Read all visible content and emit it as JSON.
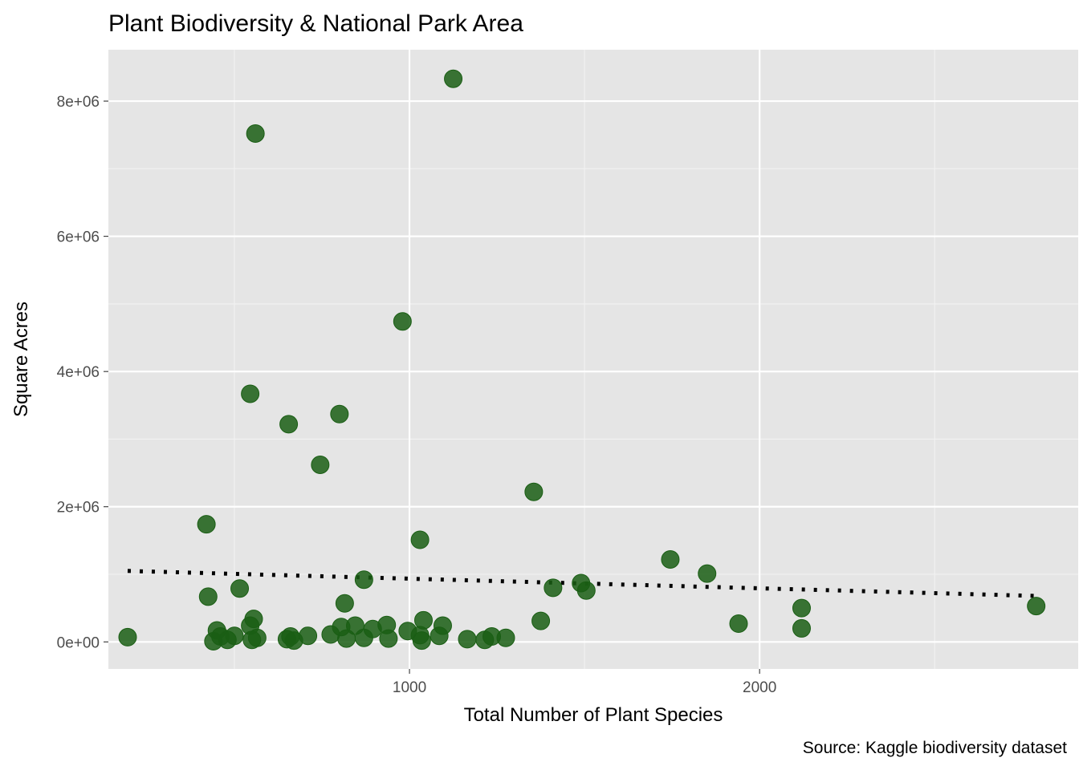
{
  "chart_data": {
    "type": "scatter",
    "title": "Plant Biodiversity & National Park Area",
    "xlabel": "Total Number of Plant Species",
    "ylabel": "Square Acres",
    "caption": "Source: Kaggle biodiversity dataset",
    "xlim": [
      140,
      2910
    ],
    "ylim": [
      -400000,
      8760000
    ],
    "x_ticks": [
      1000,
      2000
    ],
    "x_tick_labels": [
      "1000",
      "2000"
    ],
    "x_minor_ticks": [
      500,
      1500,
      2500
    ],
    "y_ticks": [
      0,
      2000000,
      4000000,
      6000000,
      8000000
    ],
    "y_tick_labels": [
      "0e+00",
      "2e+06",
      "4e+06",
      "6e+06",
      "8e+06"
    ],
    "y_minor_ticks": [
      1000000,
      3000000,
      5000000,
      7000000
    ],
    "grid": true,
    "background": "#e5e5e5",
    "point_color": "#1a5e14",
    "trend_color": "#000000",
    "trend_line": {
      "style": "dotted",
      "x": [
        195,
        2790
      ],
      "y": [
        1050000,
        680000
      ]
    },
    "series": [
      {
        "points": [
          [
            1125,
            8330000
          ],
          [
            560,
            7520000
          ],
          [
            980,
            4740000
          ],
          [
            545,
            3670000
          ],
          [
            655,
            3220000
          ],
          [
            800,
            3370000
          ],
          [
            745,
            2620000
          ],
          [
            1355,
            2220000
          ],
          [
            420,
            1740000
          ],
          [
            1030,
            1510000
          ],
          [
            1745,
            1220000
          ],
          [
            1850,
            1010000
          ],
          [
            870,
            920000
          ],
          [
            1490,
            870000
          ],
          [
            1505,
            760000
          ],
          [
            1410,
            800000
          ],
          [
            515,
            790000
          ],
          [
            425,
            670000
          ],
          [
            815,
            570000
          ],
          [
            2120,
            500000
          ],
          [
            2790,
            530000
          ],
          [
            1940,
            270000
          ],
          [
            2120,
            200000
          ],
          [
            1375,
            310000
          ],
          [
            555,
            340000
          ],
          [
            545,
            240000
          ],
          [
            450,
            170000
          ],
          [
            460,
            80000
          ],
          [
            500,
            90000
          ],
          [
            565,
            60000
          ],
          [
            440,
            10000
          ],
          [
            480,
            30000
          ],
          [
            550,
            30000
          ],
          [
            660,
            80000
          ],
          [
            650,
            40000
          ],
          [
            670,
            20000
          ],
          [
            710,
            90000
          ],
          [
            775,
            110000
          ],
          [
            805,
            220000
          ],
          [
            820,
            50000
          ],
          [
            845,
            240000
          ],
          [
            870,
            60000
          ],
          [
            895,
            190000
          ],
          [
            935,
            250000
          ],
          [
            940,
            50000
          ],
          [
            995,
            160000
          ],
          [
            1030,
            100000
          ],
          [
            1035,
            20000
          ],
          [
            1040,
            320000
          ],
          [
            1085,
            90000
          ],
          [
            1095,
            240000
          ],
          [
            1165,
            40000
          ],
          [
            1215,
            30000
          ],
          [
            1235,
            80000
          ],
          [
            1275,
            60000
          ],
          [
            195,
            70000
          ]
        ]
      }
    ]
  }
}
